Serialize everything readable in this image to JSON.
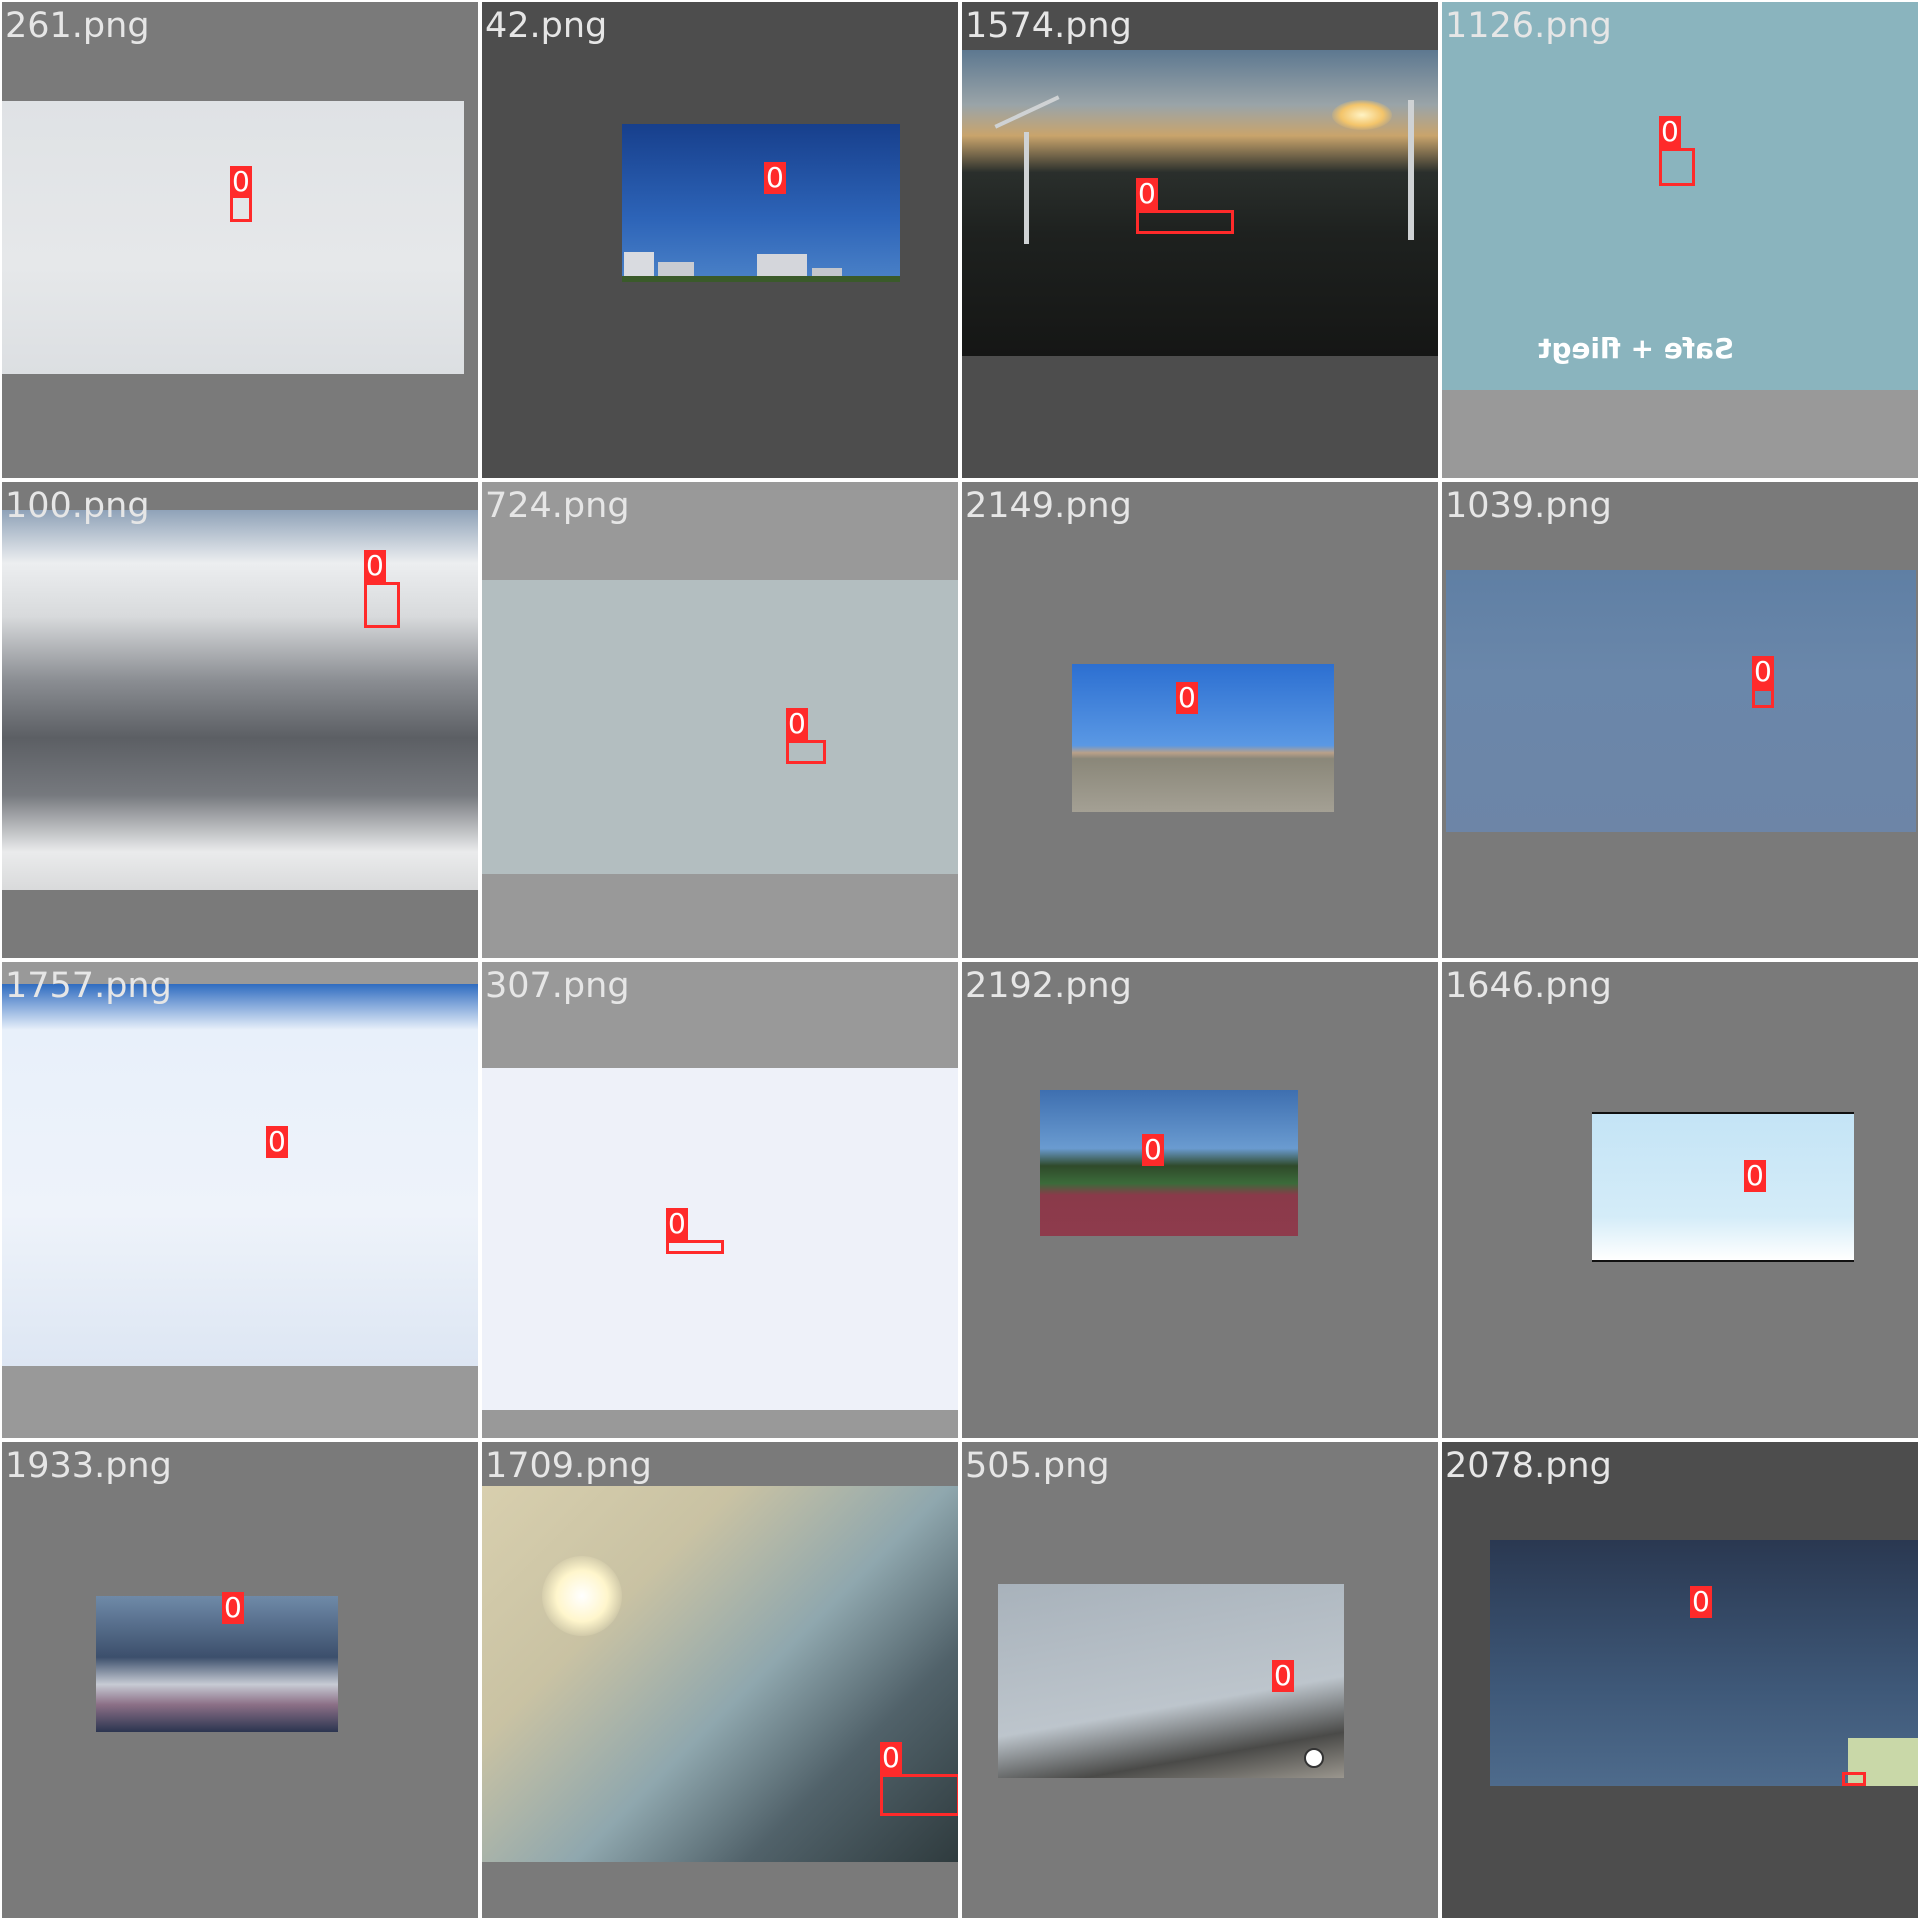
{
  "mosaic": {
    "tiles": [
      {
        "filename": "261.png",
        "label": "0"
      },
      {
        "filename": "42.png",
        "label": "0"
      },
      {
        "filename": "1574.png",
        "label": "0"
      },
      {
        "filename": "1126.png",
        "label": "0",
        "overlay_text": "Safe + fliegt"
      },
      {
        "filename": "100.png",
        "label": "0"
      },
      {
        "filename": "724.png",
        "label": "0"
      },
      {
        "filename": "2149.png",
        "label": "0"
      },
      {
        "filename": "1039.png",
        "label": "0"
      },
      {
        "filename": "1757.png",
        "label": "0"
      },
      {
        "filename": "307.png",
        "label": "0"
      },
      {
        "filename": "2192.png",
        "label": "0"
      },
      {
        "filename": "1646.png",
        "label": "0"
      },
      {
        "filename": "1933.png",
        "label": "0"
      },
      {
        "filename": "1709.png",
        "label": "0"
      },
      {
        "filename": "505.png",
        "label": "0"
      },
      {
        "filename": "2078.png",
        "label": "0"
      }
    ],
    "colors": {
      "box": "#ff2a2a",
      "label_text": "#ffffff",
      "filename_text": "#e6e6e6"
    }
  }
}
